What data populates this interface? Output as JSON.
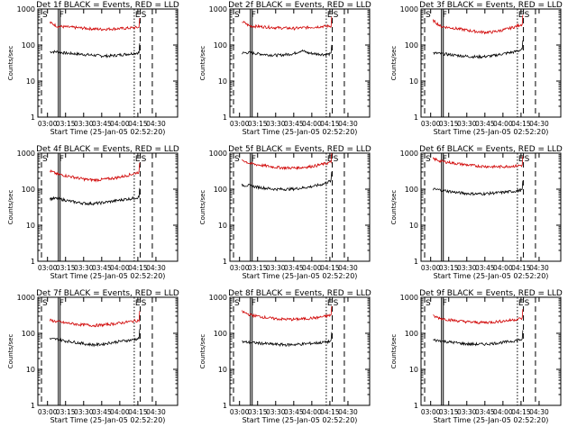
{
  "chart_data": [
    {
      "type": "line",
      "title": "Det 1f BLACK = Events, RED = LLD",
      "xlabel": "Start Time (25-Jan-05 02:52:20)",
      "ylabel": "Counts/sec",
      "x_ticks": [
        "03:00",
        "03:15",
        "03:30",
        "03:45",
        "04:00",
        "04:15",
        "04:30"
      ],
      "y_ticks": [
        "1",
        "10",
        "100",
        "1000"
      ],
      "y_scale": "log",
      "ylim": [
        1,
        1000
      ],
      "marker_labels": [
        "S",
        "F",
        "E",
        "S"
      ],
      "series": [
        {
          "name": "Events",
          "color": "#000000",
          "values": [
            65,
            65,
            60,
            58,
            56,
            54,
            52,
            50,
            50,
            52,
            55,
            58,
            62
          ]
        },
        {
          "name": "LLD",
          "color": "#d00000",
          "values": [
            420,
            330,
            320,
            310,
            300,
            290,
            280,
            275,
            280,
            285,
            290,
            300,
            310
          ]
        }
      ]
    },
    {
      "type": "line",
      "title": "Det 2f BLACK = Events, RED = LLD",
      "xlabel": "Start Time (25-Jan-05 02:52:20)",
      "ylabel": "Counts/sec",
      "x_ticks": [
        "03:00",
        "03:15",
        "03:30",
        "03:45",
        "04:00",
        "04:15",
        "04:30"
      ],
      "y_ticks": [
        "1",
        "10",
        "100",
        "1000"
      ],
      "y_scale": "log",
      "ylim": [
        1,
        1000
      ],
      "marker_labels": [
        "S",
        "F",
        "E",
        "S"
      ],
      "series": [
        {
          "name": "Events",
          "color": "#000000",
          "values": [
            60,
            62,
            58,
            55,
            53,
            52,
            55,
            58,
            70,
            60,
            57,
            55,
            56
          ]
        },
        {
          "name": "LLD",
          "color": "#d00000",
          "values": [
            450,
            340,
            330,
            320,
            310,
            300,
            295,
            290,
            300,
            310,
            320,
            330,
            340
          ]
        }
      ]
    },
    {
      "type": "line",
      "title": "Det 3f BLACK = Events, RED = LLD",
      "xlabel": "Start Time (25-Jan-05 02:52:20)",
      "ylabel": "Counts/sec",
      "x_ticks": [
        "03:00",
        "03:15",
        "03:30",
        "03:45",
        "04:00",
        "04:15",
        "04:30"
      ],
      "y_ticks": [
        "1",
        "10",
        "100",
        "1000"
      ],
      "y_scale": "log",
      "ylim": [
        1,
        1000
      ],
      "marker_labels": [
        "S",
        "F",
        "E",
        "S"
      ],
      "series": [
        {
          "name": "Events",
          "color": "#000000",
          "values": [
            60,
            58,
            55,
            52,
            50,
            48,
            47,
            48,
            50,
            55,
            60,
            65,
            75
          ]
        },
        {
          "name": "LLD",
          "color": "#d00000",
          "values": [
            480,
            330,
            310,
            290,
            270,
            250,
            235,
            225,
            230,
            250,
            280,
            320,
            380
          ]
        }
      ]
    },
    {
      "type": "line",
      "title": "Det 4f BLACK = Events, RED = LLD",
      "xlabel": "Start Time (25-Jan-05 02:52:20)",
      "ylabel": "Counts/sec",
      "x_ticks": [
        "03:00",
        "03:15",
        "03:30",
        "03:45",
        "04:00",
        "04:15",
        "04:30"
      ],
      "y_ticks": [
        "1",
        "10",
        "100",
        "1000"
      ],
      "y_scale": "log",
      "ylim": [
        1,
        1000
      ],
      "marker_labels": [
        "S",
        "F",
        "E",
        "S"
      ],
      "series": [
        {
          "name": "Events",
          "color": "#000000",
          "values": [
            55,
            55,
            50,
            45,
            42,
            40,
            40,
            42,
            45,
            48,
            52,
            55,
            60
          ]
        },
        {
          "name": "LLD",
          "color": "#d00000",
          "values": [
            320,
            260,
            240,
            220,
            200,
            185,
            180,
            185,
            195,
            210,
            230,
            260,
            300
          ]
        }
      ]
    },
    {
      "type": "line",
      "title": "Det 5f BLACK = Events, RED = LLD",
      "xlabel": "Start Time (25-Jan-05 02:52:20)",
      "ylabel": "Counts/sec",
      "x_ticks": [
        "03:00",
        "03:15",
        "03:30",
        "03:45",
        "04:00",
        "04:15",
        "04:30"
      ],
      "y_ticks": [
        "1",
        "10",
        "100",
        "1000"
      ],
      "y_scale": "log",
      "ylim": [
        1,
        1000
      ],
      "marker_labels": [
        "S",
        "F",
        "E",
        "S"
      ],
      "series": [
        {
          "name": "Events",
          "color": "#000000",
          "values": [
            130,
            125,
            115,
            108,
            102,
            100,
            100,
            102,
            108,
            115,
            125,
            140,
            170
          ]
        },
        {
          "name": "LLD",
          "color": "#d00000",
          "values": [
            650,
            520,
            480,
            450,
            420,
            400,
            390,
            390,
            400,
            420,
            450,
            500,
            560
          ]
        }
      ]
    },
    {
      "type": "line",
      "title": "Det 6f BLACK = Events, RED = LLD",
      "xlabel": "Start Time (25-Jan-05 02:52:20)",
      "ylabel": "Counts/sec",
      "x_ticks": [
        "03:00",
        "03:15",
        "03:30",
        "03:45",
        "04:00",
        "04:15",
        "04:30"
      ],
      "y_ticks": [
        "1",
        "10",
        "100",
        "1000"
      ],
      "y_scale": "log",
      "ylim": [
        1,
        1000
      ],
      "marker_labels": [
        "S",
        "F",
        "E",
        "S"
      ],
      "series": [
        {
          "name": "Events",
          "color": "#000000",
          "values": [
            100,
            95,
            88,
            82,
            78,
            75,
            74,
            75,
            78,
            80,
            84,
            88,
            95
          ]
        },
        {
          "name": "LLD",
          "color": "#d00000",
          "values": [
            700,
            600,
            560,
            520,
            490,
            460,
            440,
            430,
            420,
            420,
            430,
            440,
            460
          ]
        }
      ]
    },
    {
      "type": "line",
      "title": "Det 7f BLACK = Events, RED = LLD",
      "xlabel": "Start Time (25-Jan-05 02:52:20)",
      "ylabel": "Counts/sec",
      "x_ticks": [
        "03:00",
        "03:15",
        "03:30",
        "03:45",
        "04:00",
        "04:15",
        "04:30"
      ],
      "y_ticks": [
        "1",
        "10",
        "100",
        "1000"
      ],
      "y_scale": "log",
      "ylim": [
        1,
        1000
      ],
      "marker_labels": [
        "S",
        "F",
        "E",
        "S"
      ],
      "series": [
        {
          "name": "Events",
          "color": "#000000",
          "values": [
            70,
            68,
            62,
            58,
            54,
            50,
            48,
            50,
            54,
            58,
            62,
            65,
            72
          ]
        },
        {
          "name": "LLD",
          "color": "#d00000",
          "values": [
            230,
            210,
            195,
            185,
            175,
            170,
            165,
            170,
            178,
            188,
            200,
            215,
            230
          ]
        }
      ]
    },
    {
      "type": "line",
      "title": "Det 8f BLACK = Events, RED = LLD",
      "xlabel": "Start Time (25-Jan-05 02:52:20)",
      "ylabel": "Counts/sec",
      "x_ticks": [
        "03:00",
        "03:15",
        "03:30",
        "03:45",
        "04:00",
        "04:15",
        "04:30"
      ],
      "y_ticks": [
        "1",
        "10",
        "100",
        "1000"
      ],
      "y_scale": "log",
      "ylim": [
        1,
        1000
      ],
      "marker_labels": [
        "S",
        "F",
        "E",
        "S"
      ],
      "series": [
        {
          "name": "Events",
          "color": "#000000",
          "values": [
            58,
            56,
            54,
            52,
            50,
            49,
            48,
            49,
            50,
            52,
            54,
            56,
            60
          ]
        },
        {
          "name": "LLD",
          "color": "#d00000",
          "values": [
            400,
            330,
            300,
            280,
            260,
            250,
            245,
            245,
            250,
            260,
            270,
            290,
            320
          ]
        }
      ]
    },
    {
      "type": "line",
      "title": "Det 9f BLACK = Events, RED = LLD",
      "xlabel": "Start Time (25-Jan-05 02:52:20)",
      "ylabel": "Counts/sec",
      "x_ticks": [
        "03:00",
        "03:15",
        "03:30",
        "03:45",
        "04:00",
        "04:15",
        "04:30"
      ],
      "y_ticks": [
        "1",
        "10",
        "100",
        "1000"
      ],
      "y_scale": "log",
      "ylim": [
        1,
        1000
      ],
      "marker_labels": [
        "S",
        "F",
        "E",
        "S"
      ],
      "series": [
        {
          "name": "Events",
          "color": "#000000",
          "values": [
            65,
            62,
            58,
            55,
            52,
            50,
            50,
            50,
            52,
            55,
            58,
            62,
            68
          ]
        },
        {
          "name": "LLD",
          "color": "#d00000",
          "values": [
            300,
            260,
            240,
            225,
            215,
            205,
            200,
            200,
            205,
            215,
            225,
            240,
            260
          ]
        }
      ]
    }
  ]
}
